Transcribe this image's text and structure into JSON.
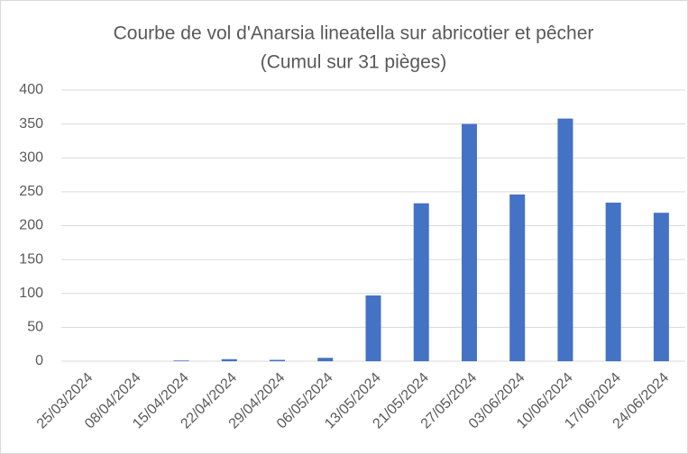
{
  "chart_data": {
    "type": "bar",
    "title": "Courbe de vol d'Anarsia lineatella sur abricotier et pêcher",
    "subtitle": "(Cumul sur 31 pièges)",
    "categories": [
      "25/03/2024",
      "08/04/2024",
      "15/04/2024",
      "22/04/2024",
      "29/04/2024",
      "06/05/2024",
      "13/05/2024",
      "21/05/2024",
      "27/05/2024",
      "03/06/2024",
      "10/06/2024",
      "17/06/2024",
      "24/06/2024"
    ],
    "values": [
      0,
      0,
      1,
      3,
      2,
      5,
      97,
      233,
      350,
      246,
      358,
      234,
      219
    ],
    "color": "#4472c4",
    "ylim": [
      0,
      400
    ],
    "yticks": [
      0,
      50,
      100,
      150,
      200,
      250,
      300,
      350,
      400
    ],
    "grid": true
  }
}
